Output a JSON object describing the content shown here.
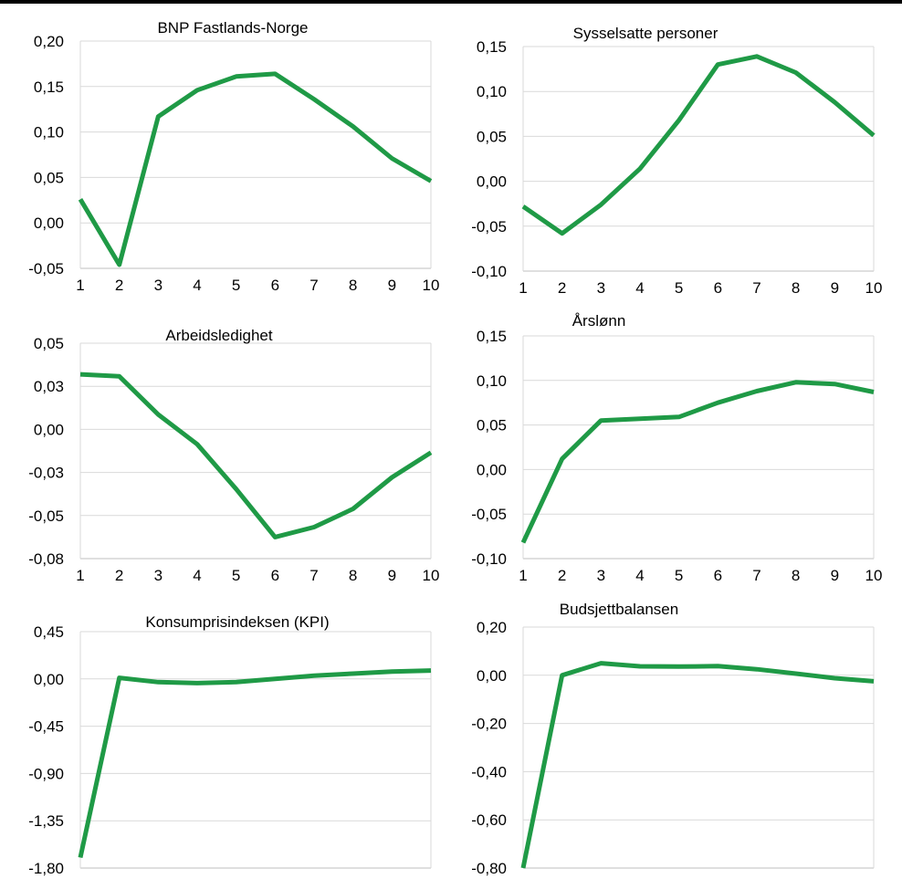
{
  "chart_data": [
    {
      "type": "line",
      "title": "BNP Fastlands-Norge",
      "xlabel": "",
      "ylabel": "",
      "x": [
        1,
        2,
        3,
        4,
        5,
        6,
        7,
        8,
        9,
        10
      ],
      "series": [
        {
          "values": [
            0.026,
            -0.046,
            0.117,
            0.146,
            0.161,
            0.164,
            0.136,
            0.106,
            0.071,
            0.046
          ]
        }
      ],
      "ylim": [
        -0.05,
        0.2
      ],
      "yticks": [
        "-0,05",
        "0,00",
        "0,05",
        "0,10",
        "0,15",
        "0,20"
      ],
      "xticks": [
        "1",
        "2",
        "3",
        "4",
        "5",
        "6",
        "7",
        "8",
        "9",
        "10"
      ],
      "grid": true,
      "legend": "none"
    },
    {
      "type": "line",
      "title": "Sysselsatte personer",
      "xlabel": "",
      "ylabel": "",
      "x": [
        1,
        2,
        3,
        4,
        5,
        6,
        7,
        8,
        9,
        10
      ],
      "series": [
        {
          "values": [
            -0.028,
            -0.058,
            -0.026,
            0.014,
            0.068,
            0.13,
            0.139,
            0.121,
            0.088,
            0.051
          ]
        }
      ],
      "ylim": [
        -0.1,
        0.15
      ],
      "yticks": [
        "-0,10",
        "-0,05",
        "0,00",
        "0,05",
        "0,10",
        "0,15"
      ],
      "xticks": [
        "1",
        "2",
        "3",
        "4",
        "5",
        "6",
        "7",
        "8",
        "9",
        "10"
      ],
      "grid": true,
      "legend": "none"
    },
    {
      "type": "line",
      "title": "Arbeidsledighet",
      "xlabel": "",
      "ylabel": "",
      "x": [
        1,
        2,
        3,
        4,
        5,
        6,
        7,
        8,
        9,
        10
      ],
      "series": [
        {
          "values": [
            0.0312,
            0.03,
            0.007,
            -0.011,
            -0.038,
            -0.067,
            -0.061,
            -0.05,
            -0.031,
            -0.016
          ]
        }
      ],
      "ylim": [
        -0.08,
        0.05
      ],
      "yticks": [
        "-0,08",
        "-0,05",
        "-0,03",
        "0,00",
        "0,03",
        "0,05"
      ],
      "xticks": [
        "1",
        "2",
        "3",
        "4",
        "5",
        "6",
        "7",
        "8",
        "9",
        "10"
      ],
      "grid": true,
      "legend": "none"
    },
    {
      "type": "line",
      "title": "Årslønn",
      "xlabel": "",
      "ylabel": "",
      "x": [
        1,
        2,
        3,
        4,
        5,
        6,
        7,
        8,
        9,
        10
      ],
      "series": [
        {
          "values": [
            -0.082,
            0.012,
            0.055,
            0.057,
            0.059,
            0.075,
            0.088,
            0.098,
            0.096,
            0.087
          ]
        }
      ],
      "ylim": [
        -0.1,
        0.15
      ],
      "yticks": [
        "-0,10",
        "-0,05",
        "0,00",
        "0,05",
        "0,10",
        "0,15"
      ],
      "xticks": [
        "1",
        "2",
        "3",
        "4",
        "5",
        "6",
        "7",
        "8",
        "9",
        "10"
      ],
      "grid": true,
      "legend": "none"
    },
    {
      "type": "line",
      "title": "Konsumprisindeksen (KPI)",
      "xlabel": "",
      "ylabel": "",
      "x": [
        1,
        2,
        3,
        4,
        5,
        6,
        7,
        8,
        9,
        10
      ],
      "series": [
        {
          "values": [
            -1.7,
            0.01,
            -0.03,
            -0.04,
            -0.03,
            0.0,
            0.03,
            0.05,
            0.07,
            0.08
          ]
        }
      ],
      "ylim": [
        -1.8,
        0.45
      ],
      "yticks": [
        "-1,80",
        "-1,35",
        "-0,90",
        "-0,45",
        "0,00",
        "0,45"
      ],
      "xticks": [
        "1",
        "2",
        "3",
        "4",
        "5",
        "6",
        "7",
        "8",
        "9",
        "10"
      ],
      "grid": true,
      "legend": "none"
    },
    {
      "type": "line",
      "title": "Budsjettbalansen",
      "xlabel": "",
      "ylabel": "",
      "x": [
        1,
        2,
        3,
        4,
        5,
        6,
        7,
        8,
        9,
        10
      ],
      "series": [
        {
          "values": [
            -0.8,
            0.0,
            0.05,
            0.037,
            0.036,
            0.038,
            0.025,
            0.007,
            -0.012,
            -0.025
          ]
        }
      ],
      "ylim": [
        -0.8,
        0.2
      ],
      "yticks": [
        "-0,80",
        "-0,60",
        "-0,40",
        "-0,20",
        "0,00",
        "0,20"
      ],
      "xticks": [
        "1",
        "2",
        "3",
        "4",
        "5",
        "6",
        "7",
        "8",
        "9",
        "10"
      ],
      "grid": true,
      "legend": "none"
    }
  ],
  "colors": {
    "line": "#1f9a46",
    "grid": "#d9d9d9",
    "axis": "#bfbfbf",
    "text": "#000000",
    "top_rule": "#000000"
  }
}
